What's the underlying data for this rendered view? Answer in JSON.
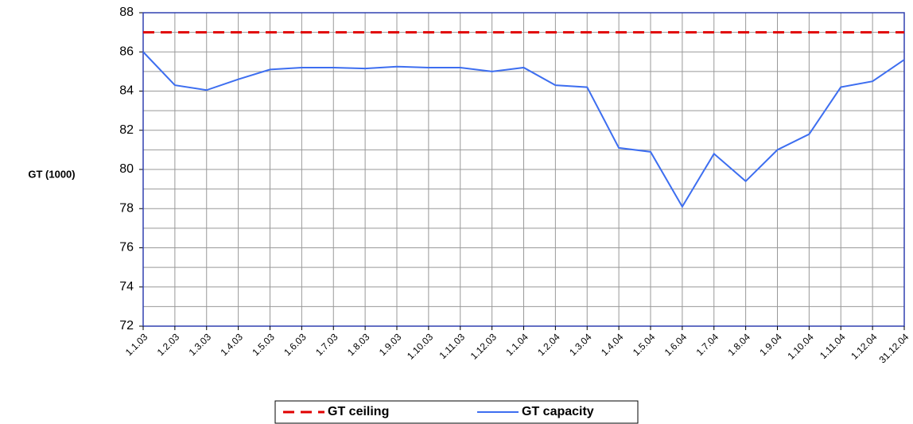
{
  "chart_data": {
    "type": "line",
    "y_label": "GT (1000)",
    "categories": [
      "1.1.03",
      "1.2.03",
      "1.3.03",
      "1.4.03",
      "1.5.03",
      "1.6.03",
      "1.7.03",
      "1.8.03",
      "1.9.03",
      "1.10.03",
      "1.11.03",
      "1.12.03",
      "1.1.04",
      "1.2.04",
      "1.3.04",
      "1.4.04",
      "1.5.04",
      "1.6.04",
      "1.7.04",
      "1.8.04",
      "1.9.04",
      "1.10.04",
      "1.11.04",
      "1.12.04",
      "31.12.04"
    ],
    "series": [
      {
        "name": "GT ceiling",
        "color": "#e00000",
        "dashed": true,
        "values": [
          87,
          87,
          87,
          87,
          87,
          87,
          87,
          87,
          87,
          87,
          87,
          87,
          87,
          87,
          87,
          87,
          87,
          87,
          87,
          87,
          87,
          87,
          87,
          87,
          87
        ]
      },
      {
        "name": "GT capacity",
        "color": "#3d6ef0",
        "dashed": false,
        "values": [
          86.0,
          84.3,
          84.05,
          84.6,
          85.1,
          85.2,
          85.2,
          85.15,
          85.25,
          85.2,
          85.2,
          85.0,
          85.2,
          84.3,
          84.2,
          81.1,
          80.9,
          78.1,
          80.8,
          79.4,
          81.0,
          81.8,
          84.2,
          84.5,
          85.6
        ]
      }
    ],
    "ylim": [
      72,
      88
    ],
    "yticks": [
      72,
      74,
      76,
      78,
      80,
      82,
      84,
      86,
      88
    ],
    "minor_yticks": [
      73,
      75,
      77,
      79,
      81,
      83,
      85,
      87
    ],
    "grid": true,
    "legend": "bottom"
  }
}
